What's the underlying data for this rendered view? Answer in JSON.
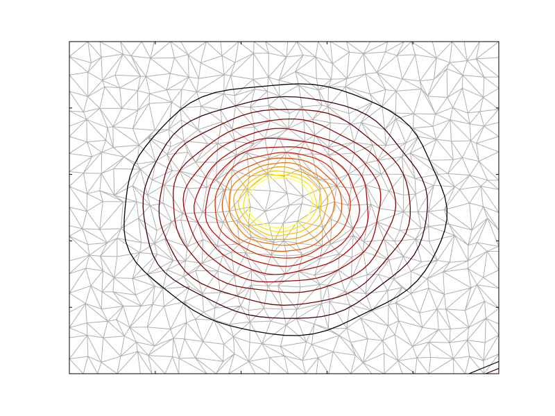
{
  "chart_data": {
    "type": "tricontour",
    "mesh_color": "#b0b0b0",
    "contour_colors": [
      "#000000",
      "#3a0000",
      "#6a0000",
      "#8b0000",
      "#a00000",
      "#b40000",
      "#c80a00",
      "#dc2a00",
      "#ec5000",
      "#f47a00",
      "#f8a000",
      "#fcc800",
      "#ffe400",
      "#ffff40"
    ],
    "grid": false
  }
}
